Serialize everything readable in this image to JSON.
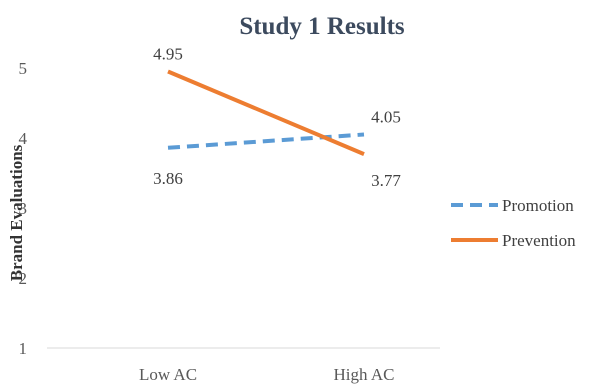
{
  "chart_data": {
    "type": "line",
    "title": "Study 1 Results",
    "xlabel": "",
    "ylabel": "Brand Evaluations",
    "categories": [
      "Low AC",
      "High AC"
    ],
    "ylim": [
      1,
      5
    ],
    "y_ticks": [
      "1",
      "2",
      "3",
      "4",
      "5"
    ],
    "grid": false,
    "legend_position": "right",
    "series": [
      {
        "name": "Promotion",
        "values": [
          3.86,
          4.05
        ],
        "value_labels": [
          "3.86",
          "4.05"
        ],
        "color": "#5B9BD5",
        "style": "dashed"
      },
      {
        "name": "Prevention",
        "values": [
          4.95,
          3.77
        ],
        "value_labels": [
          "4.95",
          "3.77"
        ],
        "color": "#ED7D31",
        "style": "solid"
      }
    ]
  }
}
